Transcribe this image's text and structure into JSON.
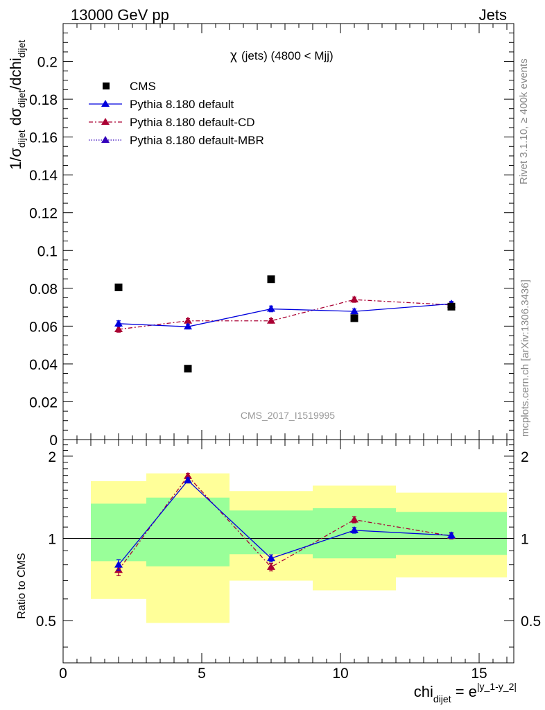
{
  "header": {
    "left": "13000 GeV pp",
    "right": "Jets"
  },
  "side_labels": {
    "rivet": "Rivet 3.1.10, ≥ 400k events",
    "mcplots": "mcplots.cern.ch [arXiv:1306.3436]"
  },
  "analysis_id": "CMS_2017_I1519995",
  "chart_data": [
    {
      "type": "scatter",
      "panel": "main",
      "title": "χ (jets) (4800 < Mjj)",
      "title_symbol": "χ",
      "title_text": "(jets) (4800 < Mjj)",
      "ylabel": "1/σ_dijet dσ_dijet/dchi_dijet",
      "ylabel_parts": {
        "a": "1/σ",
        "sub1": "dijet",
        "b": " dσ",
        "sub2": "dijet",
        "c": "/dchi",
        "sub3": "dijet"
      },
      "xlim": [
        0,
        16.25
      ],
      "ylim": [
        0,
        0.22
      ],
      "yticks": [
        "0",
        "0.02",
        "0.04",
        "0.06",
        "0.08",
        "0.1",
        "0.12",
        "0.14",
        "0.16",
        "0.18",
        "0.2"
      ],
      "ytick_values": [
        0,
        0.02,
        0.04,
        0.06,
        0.08,
        0.1,
        0.12,
        0.14,
        0.16,
        0.18,
        0.2
      ],
      "legend_position": "top-left",
      "series": [
        {
          "name": "CMS",
          "marker": "square",
          "color": "#000000",
          "x": [
            2,
            4.5,
            7.5,
            10.5,
            14
          ],
          "y": [
            0.0805,
            0.0375,
            0.0848,
            0.0642,
            0.0703
          ]
        },
        {
          "name": "Pythia 8.180 default",
          "marker": "triangle",
          "line": "solid",
          "color": "#0000dd",
          "x": [
            2,
            4.5,
            7.5,
            10.5,
            14
          ],
          "y": [
            0.0613,
            0.0597,
            0.0691,
            0.0678,
            0.0718
          ],
          "err": [
            0.0015,
            0.0012,
            0.0015,
            0.0013,
            0.0013
          ]
        },
        {
          "name": "Pythia 8.180 default-CD",
          "marker": "triangle",
          "line": "dashdot",
          "color": "#aa0033",
          "x": [
            2,
            4.5,
            7.5,
            10.5,
            14
          ],
          "y": [
            0.0583,
            0.0628,
            0.0628,
            0.074,
            0.0712
          ],
          "err": [
            0.0015,
            0.0012,
            0.0012,
            0.0014,
            0.0013
          ]
        },
        {
          "name": "Pythia 8.180 default-MBR",
          "marker": "triangle",
          "line": "dotted",
          "color": "#3300bb",
          "x": [],
          "y": []
        }
      ]
    },
    {
      "type": "line",
      "panel": "ratio",
      "xlabel": "chi_dijet = e^|y_1-y_2|",
      "xlabel_parts": {
        "a": "chi",
        "sub": "dijet",
        "b": " = e",
        "sup": "|y_1-y_2|"
      },
      "ylabel": "Ratio to CMS",
      "xlim": [
        0,
        16.25
      ],
      "ylim": [
        0.35,
        2.3
      ],
      "xticks": [
        "0",
        "5",
        "10",
        "15"
      ],
      "xtick_values": [
        0,
        5,
        10,
        15
      ],
      "yticks": [
        "0.5",
        "1",
        "2"
      ],
      "ytick_values": [
        0.5,
        1,
        2
      ],
      "reference": 1,
      "bands": [
        {
          "xlo": 1,
          "xhi": 3,
          "inner": [
            0.825,
            1.34
          ],
          "outer": [
            0.6,
            1.62
          ]
        },
        {
          "xlo": 3,
          "xhi": 6,
          "inner": [
            0.79,
            1.41
          ],
          "outer": [
            0.49,
            1.73
          ]
        },
        {
          "xlo": 6,
          "xhi": 9,
          "inner": [
            0.875,
            1.265
          ],
          "outer": [
            0.7,
            1.49
          ]
        },
        {
          "xlo": 9,
          "xhi": 12,
          "inner": [
            0.845,
            1.29
          ],
          "outer": [
            0.645,
            1.56
          ]
        },
        {
          "xlo": 12,
          "xhi": 16,
          "inner": [
            0.87,
            1.25
          ],
          "outer": [
            0.72,
            1.47
          ]
        }
      ],
      "band_colors": {
        "inner": "#99ff99",
        "outer": "#ffff99"
      },
      "series": [
        {
          "name": "Pythia 8.180 default",
          "color": "#0000dd",
          "line": "solid",
          "x": [
            2,
            4.5,
            7.5,
            10.5,
            14
          ],
          "y": [
            0.8,
            1.63,
            0.845,
            1.07,
            1.025
          ],
          "err": [
            0.035,
            0.035,
            0.025,
            0.025,
            0.025
          ]
        },
        {
          "name": "Pythia 8.180 default-CD",
          "color": "#aa0033",
          "line": "dashdot",
          "x": [
            2,
            4.5,
            7.5,
            10.5,
            14
          ],
          "y": [
            0.765,
            1.69,
            0.785,
            1.17,
            1.02
          ],
          "err": [
            0.035,
            0.04,
            0.025,
            0.03,
            0.025
          ]
        }
      ]
    }
  ]
}
